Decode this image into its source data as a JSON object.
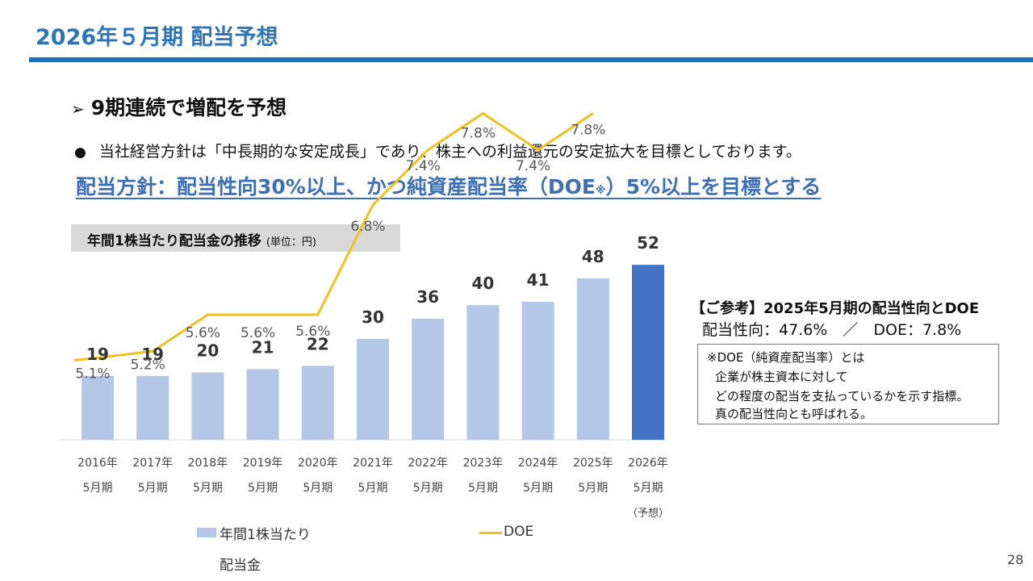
{
  "slide": {
    "title": "2026年５月期 配当予想",
    "heading_marker": "➢",
    "heading": "9期連続で増配を予想",
    "bullet_marker": "●",
    "bullet": "当社経営方針は「中長期的な安定成長」であり、株主への利益還元の安定拡大を目標としております。",
    "policy_main": "配当方針：配当性向30%以上、かつ純資産配当率（DOE",
    "policy_mark": "※",
    "policy_end": "）5%以上を目標とする",
    "page_number": "28"
  },
  "chart_header": {
    "title": "年間1株当たり配当金の推移",
    "unit": "(単位：円)"
  },
  "reference": {
    "title": "【ご参考】2025年5月期の配当性向とDOE",
    "values": "配当性向：47.6%　／　DOE：7.8%",
    "note_lines": [
      "※DOE（純資産配当率）とは",
      "企業が株主資本に対して",
      "どの程度の配当を支払っているかを示す指標。",
      "真の配当性向とも呼ばれる。"
    ]
  },
  "legend": {
    "bar_label_line1": "年間1株当たり",
    "bar_label_line2": "配当金",
    "line_label": "DOE"
  },
  "chart_data": {
    "type": "bar",
    "categories": [
      [
        "2016年",
        "5月期"
      ],
      [
        "2017年",
        "5月期"
      ],
      [
        "2018年",
        "5月期"
      ],
      [
        "2019年",
        "5月期"
      ],
      [
        "2020年",
        "5月期"
      ],
      [
        "2021年",
        "5月期"
      ],
      [
        "2022年",
        "5月期"
      ],
      [
        "2023年",
        "5月期"
      ],
      [
        "2024年",
        "5月期"
      ],
      [
        "2025年",
        "5月期"
      ],
      [
        "2026年",
        "5月期",
        "（予想）"
      ]
    ],
    "series": [
      {
        "name": "年間1株当たり配当金",
        "type": "bar",
        "values": [
          19,
          19,
          20,
          21,
          22,
          30,
          36,
          40,
          41,
          48,
          52
        ]
      },
      {
        "name": "DOE",
        "type": "line",
        "values": [
          5.1,
          5.2,
          5.6,
          5.6,
          5.6,
          6.8,
          7.4,
          7.8,
          7.4,
          7.8,
          null
        ],
        "labels": [
          "5.1%",
          "5.2%",
          "5.6%",
          "5.6%",
          "5.6%",
          "6.8%",
          "7.4%",
          "7.8%",
          "7.4%",
          "7.8%",
          null
        ]
      }
    ],
    "highlight_index": 10,
    "colors": {
      "bar": "#b4c7e7",
      "bar_highlight": "#4472c4",
      "line": "#f0c020"
    }
  }
}
